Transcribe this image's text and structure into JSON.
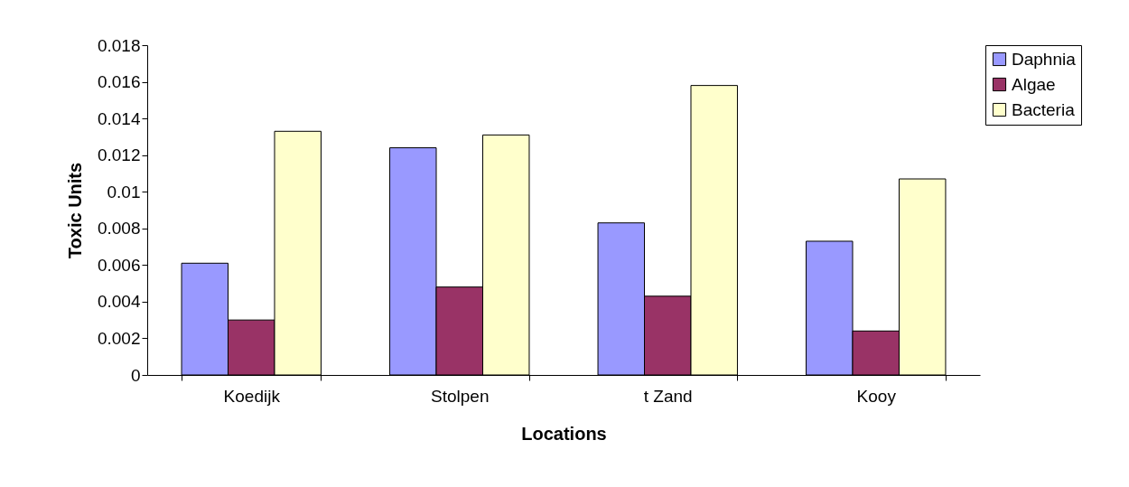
{
  "chart_data": {
    "type": "bar",
    "xlabel": "Locations",
    "ylabel": "Toxic Units",
    "categories": [
      "Koedijk",
      "Stolpen",
      "t Zand",
      "Kooy"
    ],
    "series": [
      {
        "name": "Daphnia",
        "color": "#9999ff",
        "values": [
          0.0061,
          0.0124,
          0.0083,
          0.0073
        ]
      },
      {
        "name": "Algae",
        "color": "#993366",
        "values": [
          0.003,
          0.0048,
          0.0043,
          0.0024
        ]
      },
      {
        "name": "Bacteria",
        "color": "#ffffcc",
        "values": [
          0.0133,
          0.0131,
          0.0158,
          0.0107
        ]
      }
    ],
    "ylim": [
      0,
      0.018
    ],
    "yticks": [
      0,
      0.002,
      0.004,
      0.006,
      0.008,
      0.01,
      0.012,
      0.014,
      0.016,
      0.018
    ],
    "grid": false,
    "legend": "right"
  }
}
